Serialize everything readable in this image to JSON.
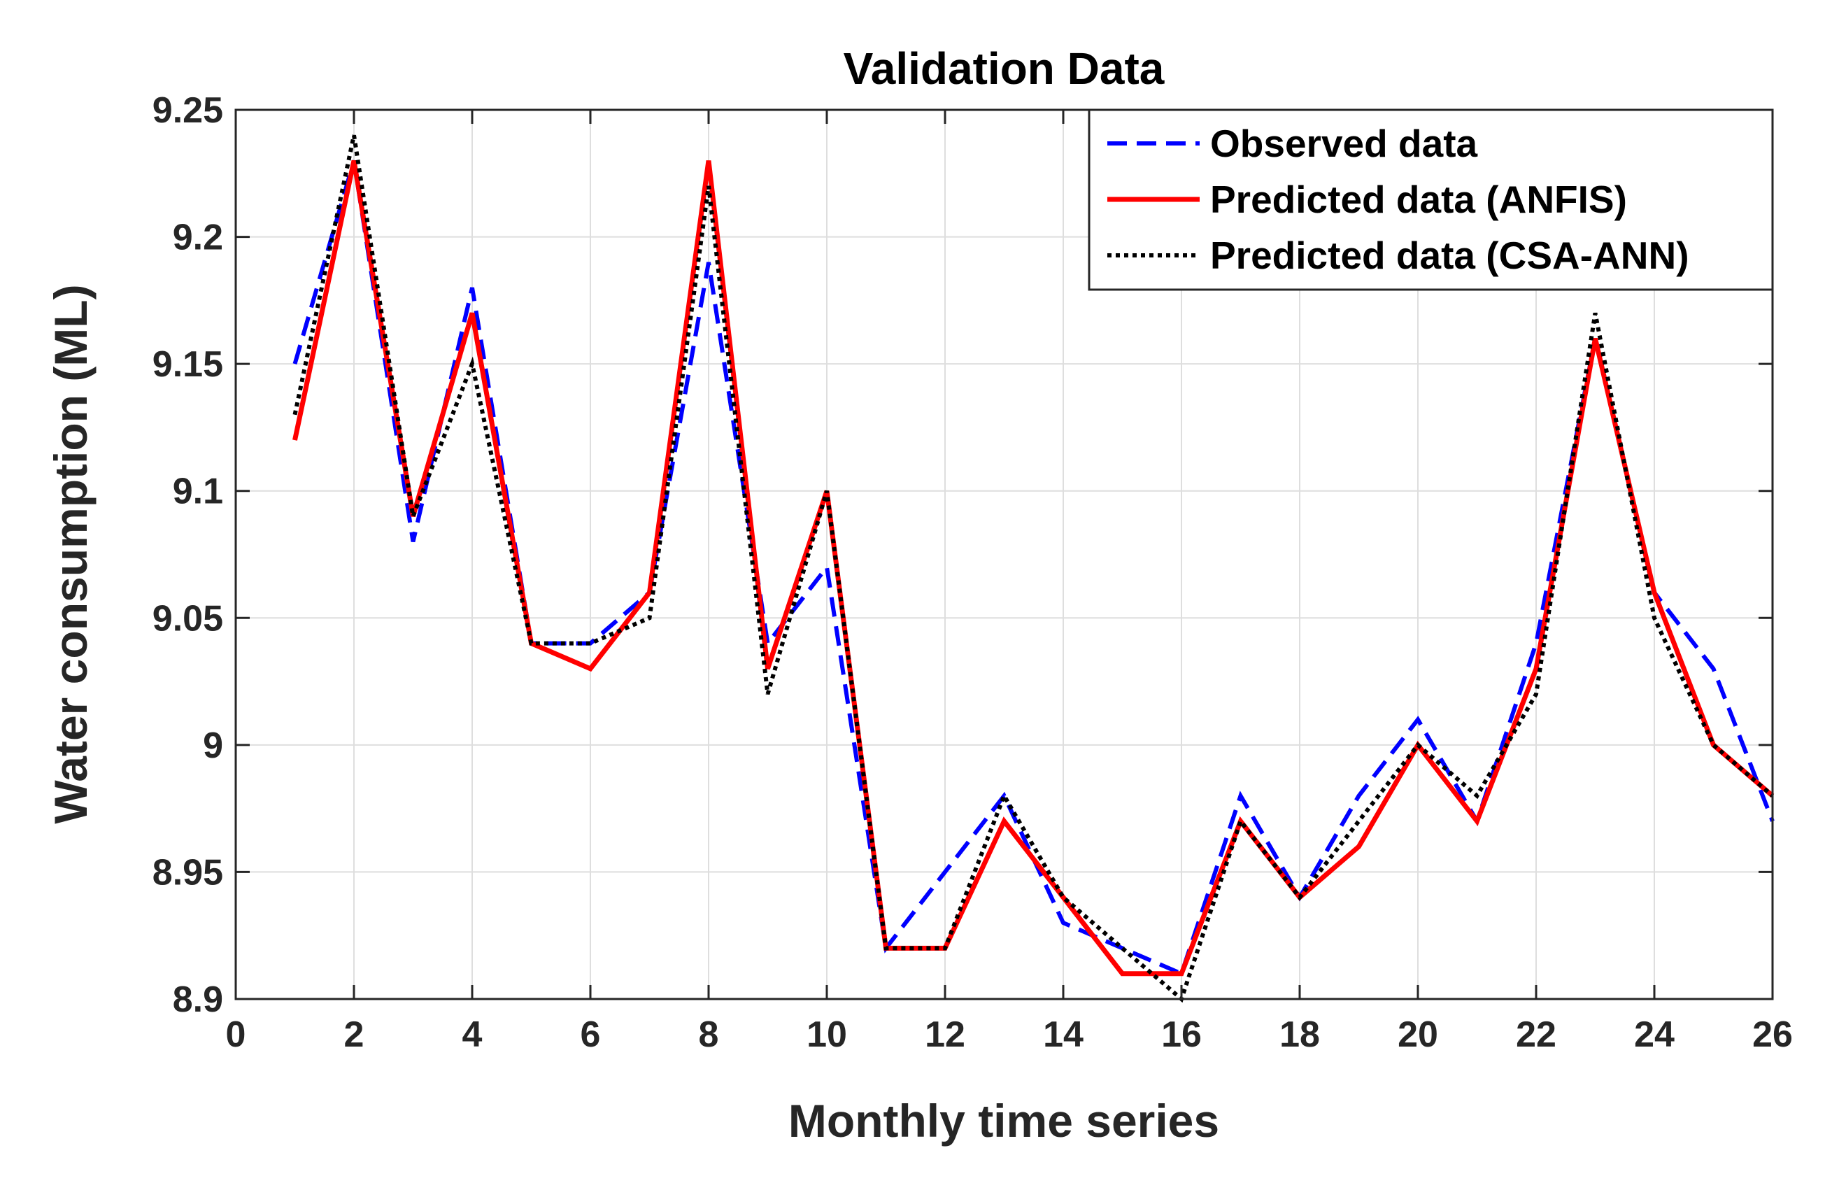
{
  "chart_data": {
    "type": "line",
    "title": "Validation Data",
    "xlabel": "Monthly time series",
    "ylabel": "Water consumption (ML)",
    "xlim": [
      0,
      26
    ],
    "ylim": [
      8.9,
      9.25
    ],
    "grid": true,
    "legend_position": "top-right",
    "x_ticks": [
      0,
      2,
      4,
      6,
      8,
      10,
      12,
      14,
      16,
      18,
      20,
      22,
      24,
      26
    ],
    "x_tick_labels": [
      "0",
      "2",
      "4",
      "6",
      "8",
      "10",
      "12",
      "14",
      "16",
      "18",
      "20",
      "22",
      "24",
      "26"
    ],
    "y_ticks": [
      8.9,
      8.95,
      9.0,
      9.05,
      9.1,
      9.15,
      9.2,
      9.25
    ],
    "y_tick_labels": [
      "8.9",
      "8.95",
      "9",
      "9.05",
      "9.1",
      "9.15",
      "9.2",
      "9.25"
    ],
    "x": [
      1,
      2,
      3,
      4,
      5,
      6,
      7,
      8,
      9,
      10,
      11,
      12,
      13,
      14,
      15,
      16,
      17,
      18,
      19,
      20,
      21,
      22,
      23,
      24,
      25,
      26
    ],
    "series": [
      {
        "name": "Observed data",
        "color": "#0000ff",
        "style": "dashed",
        "values": [
          9.15,
          9.23,
          9.08,
          9.18,
          9.04,
          9.04,
          9.06,
          9.19,
          9.04,
          9.07,
          8.92,
          8.95,
          8.98,
          8.93,
          8.92,
          8.91,
          8.98,
          8.94,
          8.98,
          9.01,
          8.97,
          9.04,
          9.16,
          9.06,
          9.03,
          8.97
        ]
      },
      {
        "name": "Predicted data (ANFIS)",
        "color": "#ff0000",
        "style": "solid",
        "values": [
          9.12,
          9.23,
          9.09,
          9.17,
          9.04,
          9.03,
          9.06,
          9.23,
          9.03,
          9.1,
          8.92,
          8.92,
          8.97,
          8.94,
          8.91,
          8.91,
          8.97,
          8.94,
          8.96,
          9.0,
          8.97,
          9.03,
          9.16,
          9.06,
          9.0,
          8.98
        ]
      },
      {
        "name": "Predicted data (CSA-ANN)",
        "color": "#000000",
        "style": "dotted",
        "values": [
          9.13,
          9.24,
          9.09,
          9.15,
          9.04,
          9.04,
          9.05,
          9.22,
          9.02,
          9.1,
          8.92,
          8.92,
          8.98,
          8.94,
          8.92,
          8.9,
          8.97,
          8.94,
          8.97,
          9.0,
          8.98,
          9.02,
          9.17,
          9.05,
          9.0,
          8.98
        ]
      }
    ]
  }
}
